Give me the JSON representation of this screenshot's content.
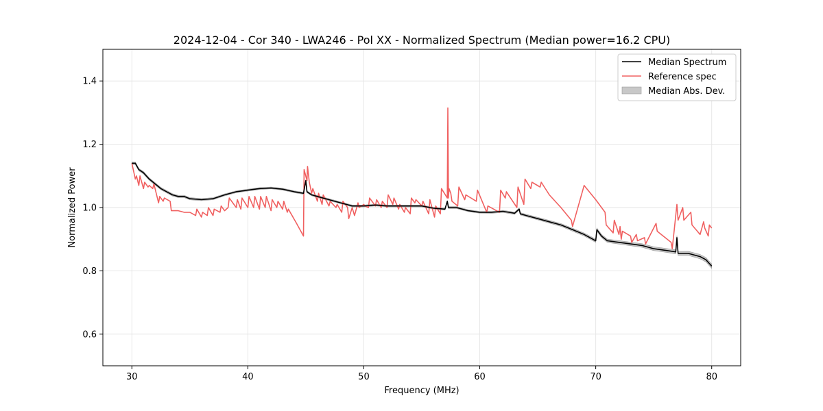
{
  "chart_data": {
    "type": "line",
    "title": "2024-12-04 - Cor 340 - LWA246 - Pol XX - Normalized Spectrum (Median power=16.2 CPU)",
    "xlabel": "Frequency (MHz)",
    "ylabel": "Normalized Power",
    "xlim": [
      27.5,
      82.5
    ],
    "ylim": [
      0.5,
      1.5
    ],
    "xticks": [
      30,
      40,
      50,
      60,
      70,
      80
    ],
    "yticks": [
      0.6,
      0.8,
      1.0,
      1.2,
      1.4
    ],
    "xtick_labels": [
      "30",
      "40",
      "50",
      "60",
      "70",
      "80"
    ],
    "ytick_labels": [
      "0.6",
      "0.8",
      "1.0",
      "1.2",
      "1.4"
    ],
    "grid": true,
    "legend_position": "top-right",
    "colors": {
      "median": "#000000",
      "reference": "#f06060",
      "mad_fill": "#c8c8c8",
      "mad_edge": "#9a9a9a",
      "grid": "#e6e6e6"
    },
    "legend": [
      "Median Spectrum",
      "Reference spec",
      "Median Abs. Dev."
    ],
    "series": [
      {
        "name": "Median Spectrum",
        "x": [
          30,
          30.3,
          30.6,
          31,
          31.5,
          32,
          32.5,
          33,
          33.5,
          34,
          34.5,
          35,
          36,
          37,
          38,
          39,
          40,
          41,
          42,
          43,
          44,
          44.8,
          45.0,
          45.1,
          45.5,
          46,
          47,
          48,
          49,
          50,
          51,
          52,
          53,
          54,
          55,
          56,
          57,
          57.2,
          57.3,
          58,
          59,
          60,
          61,
          62,
          63,
          63.4,
          63.5,
          64,
          65,
          66,
          67,
          68,
          69,
          70,
          70.1,
          70.5,
          71,
          72,
          73,
          74,
          75,
          76,
          76.9,
          77.0,
          77.1,
          78,
          79,
          79.5,
          80
        ],
        "y": [
          1.14,
          1.14,
          1.12,
          1.11,
          1.09,
          1.075,
          1.06,
          1.05,
          1.04,
          1.035,
          1.035,
          1.028,
          1.025,
          1.028,
          1.04,
          1.05,
          1.055,
          1.06,
          1.062,
          1.058,
          1.05,
          1.045,
          1.085,
          1.05,
          1.04,
          1.035,
          1.025,
          1.015,
          1.005,
          1.005,
          1.008,
          1.005,
          1.005,
          1.005,
          1.005,
          0.998,
          0.995,
          1.02,
          1.0,
          1.0,
          0.99,
          0.985,
          0.985,
          0.988,
          0.982,
          0.995,
          0.98,
          0.975,
          0.965,
          0.955,
          0.945,
          0.93,
          0.915,
          0.895,
          0.93,
          0.91,
          0.895,
          0.89,
          0.885,
          0.88,
          0.87,
          0.865,
          0.86,
          0.905,
          0.855,
          0.855,
          0.845,
          0.835,
          0.815
        ]
      },
      {
        "name": "Reference spec",
        "x": [
          30,
          30.3,
          30.4,
          30.6,
          30.7,
          31,
          31.1,
          31.4,
          31.5,
          31.8,
          31.9,
          32.3,
          32.4,
          32.7,
          32.8,
          33.3,
          33.4,
          34,
          34.5,
          35,
          35.5,
          35.6,
          36,
          36.1,
          36.5,
          36.6,
          37,
          37.1,
          37.6,
          37.7,
          38,
          38.3,
          38.4,
          39,
          39.1,
          39.4,
          39.5,
          40,
          40.1,
          40.5,
          40.6,
          41,
          41.1,
          41.5,
          41.6,
          42,
          42.1,
          42.5,
          42.6,
          43,
          43.1,
          43.4,
          43.5,
          44.2,
          44.8,
          44.85,
          45.1,
          45.15,
          45.3,
          45.5,
          45.6,
          46,
          46.1,
          46.4,
          46.5,
          47,
          47.1,
          47.6,
          47.7,
          48.1,
          48.2,
          48.6,
          48.7,
          49,
          49.2,
          49.5,
          49.6,
          50,
          50.1,
          50.4,
          50.5,
          51,
          51.1,
          51.5,
          51.6,
          52,
          52.1,
          52.5,
          52.6,
          53,
          53.1,
          53.5,
          53.6,
          54,
          54.1,
          54.4,
          54.5,
          55,
          55.1,
          55.6,
          55.7,
          56.1,
          56.2,
          56.6,
          56.7,
          57.2,
          57.25,
          57.3,
          57.35,
          57.5,
          57.6,
          58.1,
          58.2,
          58.7,
          58.8,
          59.7,
          59.8,
          60.6,
          60.7,
          61.7,
          61.8,
          62.2,
          62.3,
          63.2,
          63.3,
          63.8,
          63.9,
          64.4,
          64.5,
          65.2,
          65.3,
          66,
          67,
          67.9,
          68,
          69,
          70,
          70.8,
          70.9,
          71.5,
          71.6,
          72,
          72.1,
          72.2,
          72.3,
          73,
          73.1,
          73.5,
          73.6,
          74.2,
          74.3,
          75.2,
          75.3,
          76.5,
          76.6,
          77,
          77.1,
          77.5,
          77.6,
          78.2,
          78.3,
          79.0,
          79.3,
          79.4,
          79.7,
          79.8,
          80
        ],
        "y": [
          1.14,
          1.09,
          1.1,
          1.07,
          1.1,
          1.06,
          1.08,
          1.065,
          1.07,
          1.06,
          1.075,
          1.015,
          1.035,
          1.02,
          1.03,
          1.02,
          0.99,
          0.99,
          0.985,
          0.985,
          0.975,
          0.995,
          0.97,
          0.985,
          0.975,
          1.0,
          0.975,
          0.995,
          0.985,
          1.005,
          0.99,
          1.0,
          1.03,
          1.0,
          1.025,
          0.995,
          1.03,
          1.0,
          1.035,
          1.0,
          1.035,
          0.995,
          1.035,
          1.0,
          1.035,
          0.99,
          1.025,
          1.0,
          1.02,
          0.995,
          1.02,
          0.985,
          0.995,
          0.95,
          0.91,
          1.12,
          1.085,
          1.13,
          1.08,
          1.045,
          1.06,
          1.02,
          1.045,
          1.01,
          1.04,
          1.005,
          1.02,
          1.0,
          1.01,
          0.985,
          1.02,
          1.0,
          0.965,
          1.0,
          0.975,
          1.015,
          1.0,
          1.01,
          1.005,
          1.0,
          1.03,
          1.005,
          1.025,
          1.0,
          1.02,
          1.0,
          1.04,
          1.01,
          1.03,
          0.995,
          1.01,
          0.985,
          1.0,
          0.98,
          1.03,
          1.015,
          1.025,
          1.005,
          1.02,
          0.98,
          1.025,
          0.97,
          1.005,
          0.98,
          1.06,
          1.03,
          1.315,
          1.03,
          1.06,
          1.045,
          1.02,
          1.005,
          1.065,
          1.025,
          1.04,
          1.02,
          1.055,
          0.985,
          1.005,
          0.985,
          1.055,
          1.03,
          1.05,
          1.0,
          1.065,
          1.01,
          1.09,
          1.06,
          1.08,
          1.065,
          1.08,
          1.04,
          1.0,
          0.96,
          0.94,
          1.07,
          1.025,
          0.985,
          0.945,
          0.92,
          0.96,
          0.915,
          0.94,
          0.9,
          0.925,
          0.91,
          0.89,
          0.915,
          0.895,
          0.905,
          0.885,
          0.95,
          0.925,
          0.89,
          0.87,
          1.01,
          0.96,
          1.0,
          0.96,
          0.985,
          0.945,
          0.915,
          0.955,
          0.935,
          0.91,
          0.945,
          0.935
        ]
      }
    ],
    "mad_band": {
      "name": "Median Abs. Dev.",
      "x": [
        30,
        40,
        50,
        60,
        70,
        75,
        80
      ],
      "halfwidth": [
        0.004,
        0.003,
        0.003,
        0.003,
        0.005,
        0.006,
        0.007
      ]
    }
  }
}
